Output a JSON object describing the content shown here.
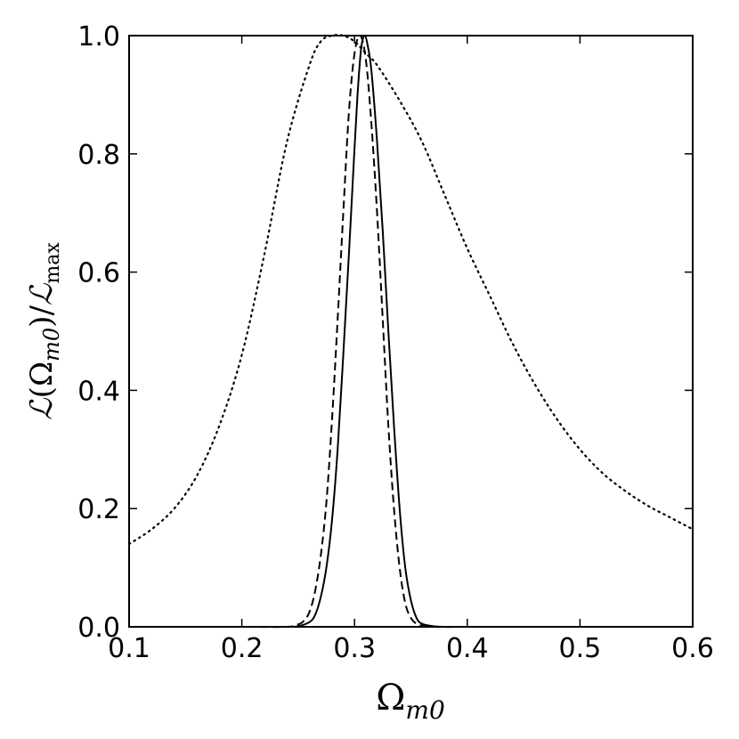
{
  "chart_data": {
    "type": "line",
    "title": "",
    "xlabel": {
      "base": "Ω",
      "sub": "m0"
    },
    "ylabel": {
      "num_fn": "ℒ",
      "num_arg": "Ω",
      "num_arg_sub": "m0",
      "den_fn": "ℒ",
      "den_sub": "max"
    },
    "xlim": [
      0.1,
      0.6
    ],
    "ylim": [
      0.0,
      1.0
    ],
    "xticks": [
      0.1,
      0.2,
      0.3,
      0.4,
      0.5,
      0.6
    ],
    "xtick_labels": [
      "0.1",
      "0.2",
      "0.3",
      "0.4",
      "0.5",
      "0.6"
    ],
    "yticks": [
      0.0,
      0.2,
      0.4,
      0.6,
      0.8,
      1.0
    ],
    "ytick_labels": [
      "0.0",
      "0.2",
      "0.4",
      "0.6",
      "0.8",
      "1.0"
    ],
    "grid": false,
    "legend": "none",
    "series": [
      {
        "style": "solid",
        "color": "#000000",
        "x": [
          0.15,
          0.2,
          0.24,
          0.25,
          0.26,
          0.265,
          0.27,
          0.275,
          0.28,
          0.285,
          0.29,
          0.295,
          0.3,
          0.303,
          0.306,
          0.309,
          0.312,
          0.315,
          0.32,
          0.325,
          0.33,
          0.335,
          0.34,
          0.345,
          0.35,
          0.355,
          0.36,
          0.37,
          0.38,
          0.4
        ],
        "y": [
          0.0,
          0.0,
          0.0,
          0.001,
          0.008,
          0.02,
          0.05,
          0.1,
          0.18,
          0.3,
          0.46,
          0.63,
          0.81,
          0.91,
          0.98,
          1.0,
          0.98,
          0.94,
          0.82,
          0.67,
          0.5,
          0.34,
          0.2,
          0.1,
          0.045,
          0.015,
          0.005,
          0.001,
          0.0,
          0.0
        ]
      },
      {
        "style": "dashed",
        "color": "#000000",
        "x": [
          0.15,
          0.2,
          0.24,
          0.25,
          0.255,
          0.26,
          0.265,
          0.27,
          0.275,
          0.28,
          0.285,
          0.29,
          0.295,
          0.3,
          0.305,
          0.31,
          0.315,
          0.32,
          0.325,
          0.33,
          0.335,
          0.34,
          0.345,
          0.35,
          0.355,
          0.36,
          0.37,
          0.4
        ],
        "y": [
          0.0,
          0.0,
          0.0,
          0.004,
          0.01,
          0.025,
          0.06,
          0.12,
          0.21,
          0.35,
          0.52,
          0.7,
          0.87,
          0.97,
          1.0,
          0.96,
          0.85,
          0.7,
          0.52,
          0.34,
          0.2,
          0.1,
          0.04,
          0.015,
          0.005,
          0.002,
          0.0,
          0.0
        ]
      },
      {
        "style": "dotted",
        "color": "#000000",
        "x": [
          0.1,
          0.12,
          0.14,
          0.16,
          0.18,
          0.2,
          0.22,
          0.24,
          0.26,
          0.27,
          0.28,
          0.29,
          0.3,
          0.31,
          0.32,
          0.34,
          0.36,
          0.38,
          0.4,
          0.42,
          0.44,
          0.46,
          0.48,
          0.5,
          0.52,
          0.54,
          0.56,
          0.58,
          0.6
        ],
        "y": [
          0.14,
          0.165,
          0.2,
          0.255,
          0.34,
          0.46,
          0.63,
          0.82,
          0.95,
          0.99,
          1.0,
          1.0,
          0.99,
          0.97,
          0.95,
          0.89,
          0.82,
          0.73,
          0.64,
          0.56,
          0.48,
          0.41,
          0.35,
          0.3,
          0.26,
          0.23,
          0.205,
          0.185,
          0.165
        ]
      }
    ]
  }
}
